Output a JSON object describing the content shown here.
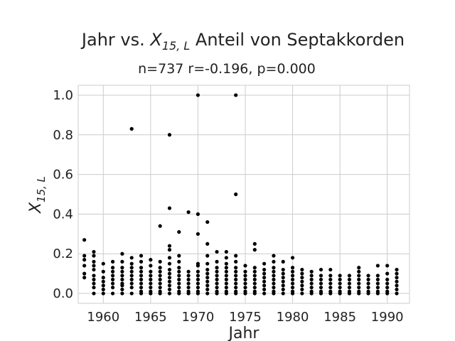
{
  "chart_data": {
    "type": "scatter",
    "title": {
      "prefix": "Jahr vs. ",
      "var_main": "X",
      "var_sub": "15, L",
      "suffix": " Anteil von Septakkorden"
    },
    "subtitle": "n=737 r=-0.196, p=0.000",
    "xlabel": "Jahr",
    "ylabel": {
      "main": "X",
      "sub": "15, L"
    },
    "xlim": [
      1957.35,
      1992.35
    ],
    "ylim": [
      -0.05,
      1.05
    ],
    "xticks": [
      1960,
      1965,
      1970,
      1975,
      1980,
      1985,
      1990
    ],
    "xtick_labels": [
      "1960",
      "1965",
      "1970",
      "1975",
      "1980",
      "1985",
      "1990"
    ],
    "yticks": [
      0.0,
      0.2,
      0.4,
      0.6,
      0.8,
      1.0
    ],
    "ytick_labels": [
      "0.0",
      "0.2",
      "0.4",
      "0.6",
      "0.8",
      "1.0"
    ],
    "grid": true,
    "marker_color": "#000000",
    "points": [
      [
        1958,
        0.27
      ],
      [
        1958,
        0.19
      ],
      [
        1958,
        0.17
      ],
      [
        1958,
        0.14
      ],
      [
        1958,
        0.1
      ],
      [
        1958,
        0.08
      ],
      [
        1959,
        0.21
      ],
      [
        1959,
        0.19
      ],
      [
        1959,
        0.16
      ],
      [
        1959,
        0.14
      ],
      [
        1959,
        0.12
      ],
      [
        1959,
        0.09
      ],
      [
        1959,
        0.07
      ],
      [
        1959,
        0.05
      ],
      [
        1959,
        0.03
      ],
      [
        1959,
        0.0
      ],
      [
        1960,
        0.15
      ],
      [
        1960,
        0.11
      ],
      [
        1960,
        0.08
      ],
      [
        1960,
        0.06
      ],
      [
        1960,
        0.04
      ],
      [
        1960,
        0.02
      ],
      [
        1960,
        0.0
      ],
      [
        1961,
        0.16
      ],
      [
        1961,
        0.13
      ],
      [
        1961,
        0.11
      ],
      [
        1961,
        0.09
      ],
      [
        1961,
        0.07
      ],
      [
        1961,
        0.05
      ],
      [
        1961,
        0.03
      ],
      [
        1961,
        0.0
      ],
      [
        1962,
        0.2
      ],
      [
        1962,
        0.16
      ],
      [
        1962,
        0.13
      ],
      [
        1962,
        0.11
      ],
      [
        1962,
        0.09
      ],
      [
        1962,
        0.07
      ],
      [
        1962,
        0.05
      ],
      [
        1962,
        0.04
      ],
      [
        1962,
        0.02
      ],
      [
        1962,
        0.0
      ],
      [
        1963,
        0.83
      ],
      [
        1963,
        0.18
      ],
      [
        1963,
        0.15
      ],
      [
        1963,
        0.13
      ],
      [
        1963,
        0.11
      ],
      [
        1963,
        0.09
      ],
      [
        1963,
        0.07
      ],
      [
        1963,
        0.05
      ],
      [
        1963,
        0.03
      ],
      [
        1963,
        0.0
      ],
      [
        1964,
        0.19
      ],
      [
        1964,
        0.16
      ],
      [
        1964,
        0.13
      ],
      [
        1964,
        0.11
      ],
      [
        1964,
        0.09
      ],
      [
        1964,
        0.07
      ],
      [
        1964,
        0.05
      ],
      [
        1964,
        0.03
      ],
      [
        1964,
        0.01
      ],
      [
        1964,
        0.0
      ],
      [
        1965,
        0.17
      ],
      [
        1965,
        0.14
      ],
      [
        1965,
        0.11
      ],
      [
        1965,
        0.09
      ],
      [
        1965,
        0.07
      ],
      [
        1965,
        0.05
      ],
      [
        1965,
        0.03
      ],
      [
        1965,
        0.01
      ],
      [
        1965,
        0.0
      ],
      [
        1966,
        0.34
      ],
      [
        1966,
        0.16
      ],
      [
        1966,
        0.13
      ],
      [
        1966,
        0.11
      ],
      [
        1966,
        0.09
      ],
      [
        1966,
        0.07
      ],
      [
        1966,
        0.05
      ],
      [
        1966,
        0.03
      ],
      [
        1966,
        0.01
      ],
      [
        1966,
        0.0
      ],
      [
        1967,
        0.8
      ],
      [
        1967,
        0.43
      ],
      [
        1967,
        0.24
      ],
      [
        1967,
        0.22
      ],
      [
        1967,
        0.18
      ],
      [
        1967,
        0.15
      ],
      [
        1967,
        0.12
      ],
      [
        1967,
        0.1
      ],
      [
        1967,
        0.08
      ],
      [
        1967,
        0.06
      ],
      [
        1967,
        0.04
      ],
      [
        1967,
        0.02
      ],
      [
        1967,
        0.0
      ],
      [
        1968,
        0.31
      ],
      [
        1968,
        0.19
      ],
      [
        1968,
        0.16
      ],
      [
        1968,
        0.13
      ],
      [
        1968,
        0.11
      ],
      [
        1968,
        0.09
      ],
      [
        1968,
        0.07
      ],
      [
        1968,
        0.05
      ],
      [
        1968,
        0.03
      ],
      [
        1968,
        0.01
      ],
      [
        1968,
        0.0
      ],
      [
        1969,
        0.41
      ],
      [
        1969,
        0.11
      ],
      [
        1969,
        0.09
      ],
      [
        1969,
        0.07
      ],
      [
        1969,
        0.05
      ],
      [
        1969,
        0.03
      ],
      [
        1969,
        0.01
      ],
      [
        1969,
        0.0
      ],
      [
        1970,
        1.0
      ],
      [
        1970,
        0.4
      ],
      [
        1970,
        0.3
      ],
      [
        1970,
        0.15
      ],
      [
        1970,
        0.14
      ],
      [
        1970,
        0.11
      ],
      [
        1970,
        0.09
      ],
      [
        1970,
        0.07
      ],
      [
        1970,
        0.05
      ],
      [
        1970,
        0.03
      ],
      [
        1970,
        0.01
      ],
      [
        1970,
        0.0
      ],
      [
        1971,
        0.36
      ],
      [
        1971,
        0.25
      ],
      [
        1971,
        0.19
      ],
      [
        1971,
        0.15
      ],
      [
        1971,
        0.12
      ],
      [
        1971,
        0.1
      ],
      [
        1971,
        0.08
      ],
      [
        1971,
        0.06
      ],
      [
        1971,
        0.04
      ],
      [
        1971,
        0.02
      ],
      [
        1971,
        0.0
      ],
      [
        1972,
        0.21
      ],
      [
        1972,
        0.16
      ],
      [
        1972,
        0.13
      ],
      [
        1972,
        0.11
      ],
      [
        1972,
        0.09
      ],
      [
        1972,
        0.07
      ],
      [
        1972,
        0.05
      ],
      [
        1972,
        0.03
      ],
      [
        1972,
        0.01
      ],
      [
        1972,
        0.0
      ],
      [
        1973,
        0.21
      ],
      [
        1973,
        0.18
      ],
      [
        1973,
        0.15
      ],
      [
        1973,
        0.13
      ],
      [
        1973,
        0.11
      ],
      [
        1973,
        0.09
      ],
      [
        1973,
        0.07
      ],
      [
        1973,
        0.05
      ],
      [
        1973,
        0.03
      ],
      [
        1973,
        0.01
      ],
      [
        1973,
        0.0
      ],
      [
        1974,
        1.0
      ],
      [
        1974,
        0.5
      ],
      [
        1974,
        0.19
      ],
      [
        1974,
        0.16
      ],
      [
        1974,
        0.13
      ],
      [
        1974,
        0.11
      ],
      [
        1974,
        0.09
      ],
      [
        1974,
        0.07
      ],
      [
        1974,
        0.05
      ],
      [
        1974,
        0.03
      ],
      [
        1974,
        0.01
      ],
      [
        1974,
        0.0
      ],
      [
        1975,
        0.14
      ],
      [
        1975,
        0.11
      ],
      [
        1975,
        0.09
      ],
      [
        1975,
        0.07
      ],
      [
        1975,
        0.05
      ],
      [
        1975,
        0.03
      ],
      [
        1975,
        0.01
      ],
      [
        1975,
        0.0
      ],
      [
        1976,
        0.25
      ],
      [
        1976,
        0.22
      ],
      [
        1976,
        0.13
      ],
      [
        1976,
        0.11
      ],
      [
        1976,
        0.09
      ],
      [
        1976,
        0.07
      ],
      [
        1976,
        0.05
      ],
      [
        1976,
        0.03
      ],
      [
        1976,
        0.01
      ],
      [
        1976,
        0.0
      ],
      [
        1977,
        0.15
      ],
      [
        1977,
        0.12
      ],
      [
        1977,
        0.1
      ],
      [
        1977,
        0.08
      ],
      [
        1977,
        0.06
      ],
      [
        1977,
        0.04
      ],
      [
        1977,
        0.02
      ],
      [
        1977,
        0.0
      ],
      [
        1978,
        0.19
      ],
      [
        1978,
        0.16
      ],
      [
        1978,
        0.13
      ],
      [
        1978,
        0.11
      ],
      [
        1978,
        0.09
      ],
      [
        1978,
        0.07
      ],
      [
        1978,
        0.05
      ],
      [
        1978,
        0.03
      ],
      [
        1978,
        0.01
      ],
      [
        1978,
        0.0
      ],
      [
        1979,
        0.16
      ],
      [
        1979,
        0.12
      ],
      [
        1979,
        0.1
      ],
      [
        1979,
        0.08
      ],
      [
        1979,
        0.06
      ],
      [
        1979,
        0.04
      ],
      [
        1979,
        0.02
      ],
      [
        1979,
        0.0
      ],
      [
        1980,
        0.18
      ],
      [
        1980,
        0.13
      ],
      [
        1980,
        0.11
      ],
      [
        1980,
        0.09
      ],
      [
        1980,
        0.07
      ],
      [
        1980,
        0.05
      ],
      [
        1980,
        0.03
      ],
      [
        1980,
        0.01
      ],
      [
        1980,
        0.0
      ],
      [
        1981,
        0.12
      ],
      [
        1981,
        0.1
      ],
      [
        1981,
        0.08
      ],
      [
        1981,
        0.06
      ],
      [
        1981,
        0.04
      ],
      [
        1981,
        0.02
      ],
      [
        1981,
        0.0
      ],
      [
        1982,
        0.11
      ],
      [
        1982,
        0.09
      ],
      [
        1982,
        0.07
      ],
      [
        1982,
        0.05
      ],
      [
        1982,
        0.03
      ],
      [
        1982,
        0.01
      ],
      [
        1982,
        0.0
      ],
      [
        1983,
        0.12
      ],
      [
        1983,
        0.09
      ],
      [
        1983,
        0.07
      ],
      [
        1983,
        0.05
      ],
      [
        1983,
        0.03
      ],
      [
        1983,
        0.01
      ],
      [
        1983,
        0.0
      ],
      [
        1984,
        0.12
      ],
      [
        1984,
        0.09
      ],
      [
        1984,
        0.07
      ],
      [
        1984,
        0.05
      ],
      [
        1984,
        0.03
      ],
      [
        1984,
        0.01
      ],
      [
        1984,
        0.0
      ],
      [
        1985,
        0.09
      ],
      [
        1985,
        0.07
      ],
      [
        1985,
        0.05
      ],
      [
        1985,
        0.03
      ],
      [
        1985,
        0.01
      ],
      [
        1985,
        0.0
      ],
      [
        1986,
        0.09
      ],
      [
        1986,
        0.07
      ],
      [
        1986,
        0.05
      ],
      [
        1986,
        0.03
      ],
      [
        1986,
        0.01
      ],
      [
        1986,
        0.0
      ],
      [
        1987,
        0.13
      ],
      [
        1987,
        0.11
      ],
      [
        1987,
        0.09
      ],
      [
        1987,
        0.07
      ],
      [
        1987,
        0.05
      ],
      [
        1987,
        0.03
      ],
      [
        1987,
        0.01
      ],
      [
        1987,
        0.0
      ],
      [
        1988,
        0.09
      ],
      [
        1988,
        0.07
      ],
      [
        1988,
        0.05
      ],
      [
        1988,
        0.03
      ],
      [
        1988,
        0.01
      ],
      [
        1988,
        0.0
      ],
      [
        1989,
        0.14
      ],
      [
        1989,
        0.09
      ],
      [
        1989,
        0.07
      ],
      [
        1989,
        0.05
      ],
      [
        1989,
        0.03
      ],
      [
        1989,
        0.01
      ],
      [
        1989,
        0.0
      ],
      [
        1990,
        0.14
      ],
      [
        1990,
        0.1
      ],
      [
        1990,
        0.07
      ],
      [
        1990,
        0.05
      ],
      [
        1990,
        0.03
      ],
      [
        1990,
        0.01
      ],
      [
        1990,
        0.0
      ],
      [
        1991,
        0.12
      ],
      [
        1991,
        0.1
      ],
      [
        1991,
        0.08
      ],
      [
        1991,
        0.06
      ],
      [
        1991,
        0.04
      ],
      [
        1991,
        0.02
      ],
      [
        1991,
        0.0
      ]
    ]
  }
}
